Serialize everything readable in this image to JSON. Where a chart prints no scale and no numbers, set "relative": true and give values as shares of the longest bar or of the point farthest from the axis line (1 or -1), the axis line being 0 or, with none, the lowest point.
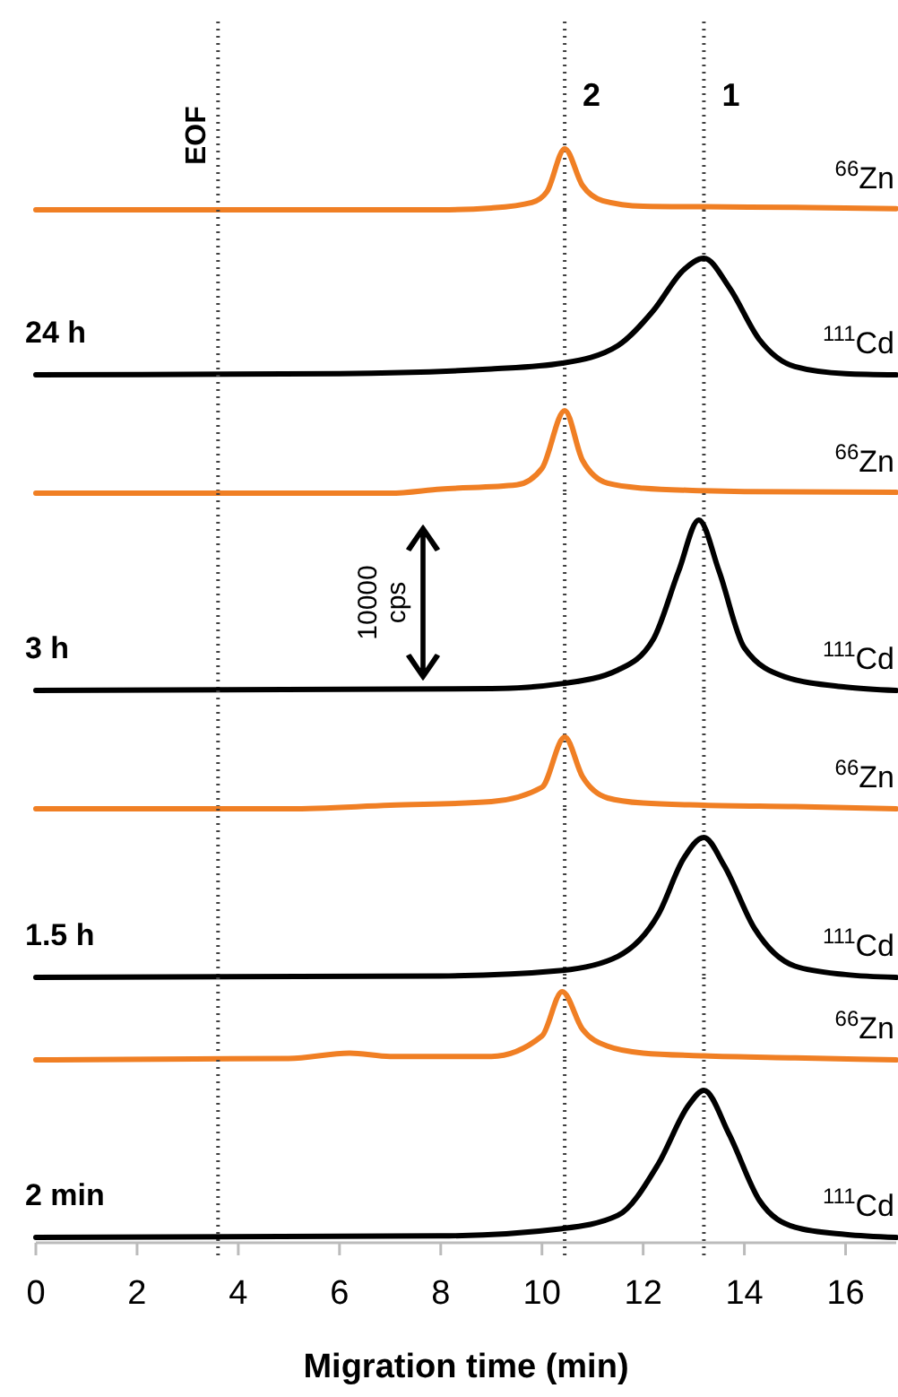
{
  "chart_data": [
    {
      "type": "line",
      "relative": true,
      "xlim": [
        0,
        17
      ],
      "tick_labels": false,
      "line_style": "solid",
      "marker": "none",
      "annotations": [
        {
          "text": "2",
          "x": 10.45
        },
        {
          "text": "1",
          "x": 13.2
        }
      ],
      "ref_lines": [
        {
          "axis": "x",
          "value": 3.6,
          "label": "EOF",
          "line_style": "dotted",
          "color": "#404040"
        },
        {
          "axis": "x",
          "value": 10.45,
          "line_style": "dotted",
          "color": "#404040"
        },
        {
          "axis": "x",
          "value": 13.2,
          "line_style": "dotted",
          "color": "#404040"
        }
      ],
      "series": [
        {
          "name": "$^{66}$Zn",
          "color": "#f07f24",
          "x": [
            0,
            8,
            9,
            9.8,
            10.1,
            10.45,
            10.8,
            11.2,
            12,
            13.2,
            15,
            17
          ],
          "values": [
            0,
            0,
            0.03,
            0.12,
            0.3,
            1,
            0.4,
            0.15,
            0.06,
            0.05,
            0.04,
            0.02
          ]
        }
      ]
    },
    {
      "type": "line",
      "relative": true,
      "title": "24 h",
      "xlim": [
        0,
        17
      ],
      "tick_labels": false,
      "line_style": "solid",
      "marker": "none",
      "ref_lines": [
        {
          "axis": "x",
          "value": 3.6,
          "line_style": "dotted",
          "color": "#404040"
        },
        {
          "axis": "x",
          "value": 10.45,
          "line_style": "dotted",
          "color": "#404040"
        },
        {
          "axis": "x",
          "value": 13.2,
          "line_style": "dotted",
          "color": "#404040"
        }
      ],
      "series": [
        {
          "name": "$^{111}$Cd",
          "color": "#000000",
          "x": [
            0,
            6,
            9,
            10.4,
            11.5,
            12.2,
            12.8,
            13.2,
            13.7,
            14.3,
            15,
            16,
            17
          ],
          "values": [
            0,
            0.01,
            0.05,
            0.1,
            0.25,
            0.55,
            0.9,
            1,
            0.75,
            0.3,
            0.07,
            0.01,
            0
          ]
        }
      ]
    },
    {
      "type": "line",
      "relative": true,
      "xlim": [
        0,
        17
      ],
      "tick_labels": false,
      "line_style": "solid",
      "marker": "none",
      "ref_lines": [
        {
          "axis": "x",
          "value": 3.6,
          "line_style": "dotted",
          "color": "#404040"
        },
        {
          "axis": "x",
          "value": 10.45,
          "line_style": "dotted",
          "color": "#404040"
        },
        {
          "axis": "x",
          "value": 13.2,
          "line_style": "dotted",
          "color": "#404040"
        }
      ],
      "series": [
        {
          "name": "$^{66}$Zn",
          "color": "#f07f24",
          "x": [
            0,
            7,
            8,
            9.5,
            10,
            10.45,
            10.8,
            11.3,
            12,
            13.2,
            14,
            17
          ],
          "values": [
            0,
            0,
            0.05,
            0.1,
            0.3,
            1,
            0.4,
            0.12,
            0.06,
            0.03,
            0.02,
            0.01
          ]
        }
      ]
    },
    {
      "type": "line",
      "relative": true,
      "title": "3 h",
      "xlim": [
        0,
        17
      ],
      "tick_labels": false,
      "line_style": "solid",
      "marker": "none",
      "annotations": [
        "10000 cps"
      ],
      "ref_lines": [
        {
          "axis": "x",
          "value": 3.6,
          "line_style": "dotted",
          "color": "#404040"
        },
        {
          "axis": "x",
          "value": 10.45,
          "line_style": "dotted",
          "color": "#404040"
        },
        {
          "axis": "x",
          "value": 13.2,
          "line_style": "dotted",
          "color": "#404040"
        }
      ],
      "series": [
        {
          "name": "$^{111}$Cd",
          "color": "#000000",
          "x": [
            0,
            9,
            10.4,
            11.5,
            12.2,
            12.7,
            13.1,
            13.5,
            14,
            14.8,
            16,
            17
          ],
          "values": [
            0,
            0.01,
            0.04,
            0.12,
            0.3,
            0.7,
            1,
            0.7,
            0.25,
            0.08,
            0.02,
            0
          ]
        }
      ]
    },
    {
      "type": "line",
      "relative": true,
      "xlim": [
        0,
        17
      ],
      "tick_labels": false,
      "line_style": "solid",
      "marker": "none",
      "ref_lines": [
        {
          "axis": "x",
          "value": 3.6,
          "line_style": "dotted",
          "color": "#404040"
        },
        {
          "axis": "x",
          "value": 10.45,
          "line_style": "dotted",
          "color": "#404040"
        },
        {
          "axis": "x",
          "value": 13.2,
          "line_style": "dotted",
          "color": "#404040"
        }
      ],
      "series": [
        {
          "name": "$^{66}$Zn",
          "color": "#f07f24",
          "x": [
            0,
            5,
            7,
            9,
            10,
            10.45,
            10.8,
            11.3,
            12,
            13.2,
            15,
            17
          ],
          "values": [
            0,
            0,
            0.05,
            0.1,
            0.3,
            1,
            0.45,
            0.15,
            0.08,
            0.05,
            0.03,
            0
          ]
        }
      ]
    },
    {
      "type": "line",
      "relative": true,
      "title": "1.5 h",
      "xlim": [
        0,
        17
      ],
      "tick_labels": false,
      "line_style": "solid",
      "marker": "none",
      "ref_lines": [
        {
          "axis": "x",
          "value": 3.6,
          "line_style": "dotted",
          "color": "#404040"
        },
        {
          "axis": "x",
          "value": 10.45,
          "line_style": "dotted",
          "color": "#404040"
        },
        {
          "axis": "x",
          "value": 13.2,
          "line_style": "dotted",
          "color": "#404040"
        }
      ],
      "series": [
        {
          "name": "$^{111}$Cd",
          "color": "#000000",
          "x": [
            0,
            8,
            10.4,
            11.5,
            12.3,
            12.8,
            13.2,
            13.6,
            14.2,
            15,
            16,
            17
          ],
          "values": [
            0,
            0.01,
            0.05,
            0.15,
            0.45,
            0.85,
            1,
            0.8,
            0.35,
            0.08,
            0.02,
            0
          ]
        }
      ]
    },
    {
      "type": "line",
      "relative": true,
      "xlim": [
        0,
        17
      ],
      "tick_labels": false,
      "line_style": "solid",
      "marker": "none",
      "ref_lines": [
        {
          "axis": "x",
          "value": 3.6,
          "line_style": "dotted",
          "color": "#404040"
        },
        {
          "axis": "x",
          "value": 10.45,
          "line_style": "dotted",
          "color": "#404040"
        },
        {
          "axis": "x",
          "value": 13.2,
          "line_style": "dotted",
          "color": "#404040"
        }
      ],
      "series": [
        {
          "name": "$^{66}$Zn",
          "color": "#f07f24",
          "x": [
            0,
            5,
            6.2,
            7,
            9,
            10,
            10.4,
            10.8,
            11.3,
            12,
            13.2,
            15,
            17
          ],
          "values": [
            0,
            0.02,
            0.1,
            0.05,
            0.05,
            0.35,
            1,
            0.45,
            0.2,
            0.1,
            0.06,
            0.03,
            0
          ]
        }
      ]
    },
    {
      "type": "line",
      "relative": true,
      "title": "2 min",
      "xlabel": "Migration time (min)",
      "xlim": [
        0,
        17
      ],
      "xticks": [
        0,
        2,
        4,
        6,
        8,
        10,
        12,
        14,
        16
      ],
      "tick_labels": "x",
      "line_style": "solid",
      "marker": "none",
      "ref_lines": [
        {
          "axis": "x",
          "value": 3.6,
          "line_style": "dotted",
          "color": "#404040"
        },
        {
          "axis": "x",
          "value": 10.45,
          "line_style": "dotted",
          "color": "#404040"
        },
        {
          "axis": "x",
          "value": 13.2,
          "line_style": "dotted",
          "color": "#404040"
        }
      ],
      "series": [
        {
          "name": "$^{111}$Cd",
          "color": "#000000",
          "x": [
            0,
            8,
            10.4,
            11.5,
            12.3,
            12.9,
            13.2,
            13.7,
            14.3,
            15,
            16,
            17
          ],
          "values": [
            0,
            0.01,
            0.06,
            0.15,
            0.5,
            0.9,
            1,
            0.7,
            0.25,
            0.07,
            0.02,
            0
          ]
        }
      ]
    }
  ]
}
